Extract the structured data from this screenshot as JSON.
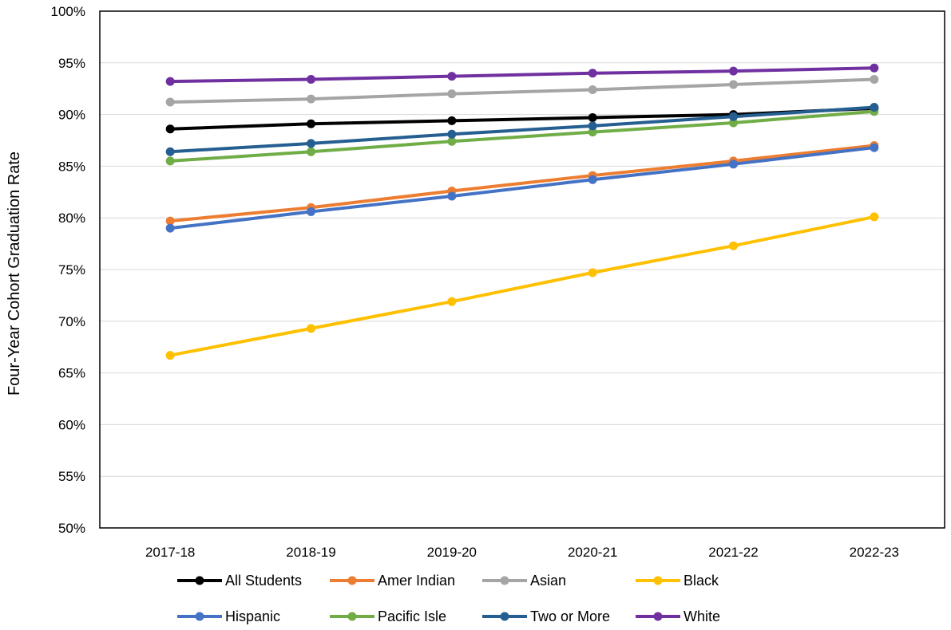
{
  "chart_data": {
    "type": "line",
    "title": "",
    "xlabel": "",
    "ylabel": "Four-Year Cohort Graduation Rate",
    "ylim": [
      50,
      100
    ],
    "yticks": [
      50,
      55,
      60,
      65,
      70,
      75,
      80,
      85,
      90,
      95,
      100
    ],
    "ytick_labels": [
      "50%",
      "55%",
      "60%",
      "65%",
      "70%",
      "75%",
      "80%",
      "85%",
      "90%",
      "95%",
      "100%"
    ],
    "grid": true,
    "legend_position": "bottom",
    "categories": [
      "2017-18",
      "2018-19",
      "2019-20",
      "2020-21",
      "2021-22",
      "2022-23"
    ],
    "series": [
      {
        "name": "All Students",
        "color": "#000000",
        "values": [
          88.6,
          89.1,
          89.4,
          89.7,
          90.0,
          90.6
        ]
      },
      {
        "name": "Amer Indian",
        "color": "#ED7D31",
        "values": [
          79.7,
          81.0,
          82.6,
          84.1,
          85.5,
          87.0
        ]
      },
      {
        "name": "Asian",
        "color": "#A5A5A5",
        "values": [
          91.2,
          91.5,
          92.0,
          92.4,
          92.9,
          93.4
        ]
      },
      {
        "name": "Black",
        "color": "#FFC000",
        "values": [
          66.7,
          69.3,
          71.9,
          74.7,
          77.3,
          80.1
        ]
      },
      {
        "name": "Hispanic",
        "color": "#4472C4",
        "values": [
          79.0,
          80.6,
          82.1,
          83.7,
          85.2,
          86.8
        ]
      },
      {
        "name": "Pacific Isle",
        "color": "#70AD47",
        "values": [
          85.5,
          86.4,
          87.4,
          88.3,
          89.2,
          90.3
        ]
      },
      {
        "name": "Two or More",
        "color": "#255E91",
        "values": [
          86.4,
          87.2,
          88.1,
          88.9,
          89.8,
          90.7
        ]
      },
      {
        "name": "White",
        "color": "#7030A0",
        "values": [
          93.2,
          93.4,
          93.7,
          94.0,
          94.2,
          94.5
        ]
      }
    ]
  }
}
